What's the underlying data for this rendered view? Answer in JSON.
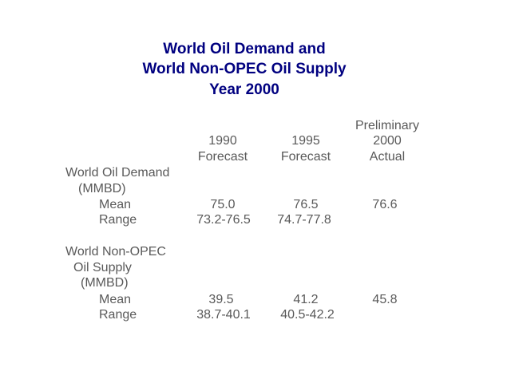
{
  "title": {
    "line1": "World Oil Demand and",
    "line2": "World Non-OPEC Oil Supply",
    "line3": "Year 2000"
  },
  "columns": {
    "col1": {
      "line1": "1990",
      "line2": "Forecast"
    },
    "col2": {
      "line1": "1995",
      "line2": "Forecast"
    },
    "col3": {
      "line1": "Preliminary",
      "line2": "2000",
      "line3": "Actual"
    }
  },
  "sections": [
    {
      "label_lines": [
        "World Oil Demand",
        "(MMBD)"
      ],
      "rows": [
        {
          "label": "Mean",
          "col1": "75.0",
          "col2": "76.5",
          "col3": "76.6"
        },
        {
          "label": "Range",
          "col1": "73.2-76.5",
          "col2": "74.7-77.8",
          "col3": ""
        }
      ]
    },
    {
      "label_lines": [
        "World Non-OPEC",
        "Oil Supply",
        "(MMBD)"
      ],
      "rows": [
        {
          "label": "Mean",
          "col1": "39.5",
          "col2": "41.2",
          "col3": "45.8"
        },
        {
          "label": "Range",
          "col1": "38.7-40.1",
          "col2": "40.5-42.2",
          "col3": ""
        }
      ]
    }
  ]
}
